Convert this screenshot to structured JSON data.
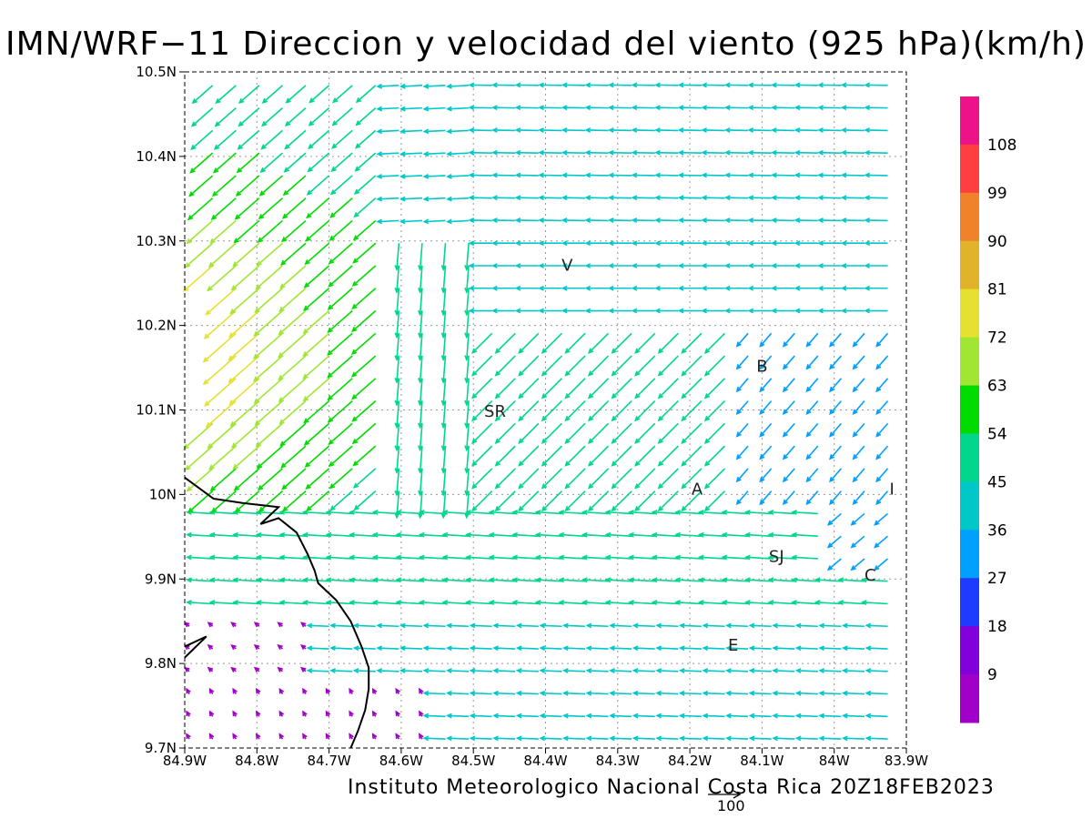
{
  "title": "IMN/WRF−11 Direccion y velocidad del viento (925 hPa)(km/h)",
  "footer": "Instituto Meteorologico Nacional Costa Rica  20Z18FEB2023",
  "reference_vector": {
    "label": "100",
    "speed_kmh": 100
  },
  "axes": {
    "lon_ticks": [
      "84.9W",
      "84.8W",
      "84.7W",
      "84.6W",
      "84.5W",
      "84.4W",
      "84.3W",
      "84.2W",
      "84.1W",
      "84W",
      "83.9W"
    ],
    "lat_ticks": [
      "10.5N",
      "10.4N",
      "10.3N",
      "10.2N",
      "10.1N",
      "10N",
      "9.9N",
      "9.8N",
      "9.7N"
    ]
  },
  "colorbar": {
    "labels": [
      "108",
      "99",
      "90",
      "81",
      "72",
      "63",
      "54",
      "45",
      "36",
      "27",
      "18",
      "9"
    ],
    "colors": [
      "#ee1289",
      "#ff3f3f",
      "#f0832a",
      "#e0b32a",
      "#e6e030",
      "#a0e632",
      "#00dc00",
      "#00d78c",
      "#00c8c8",
      "#00a0ff",
      "#1e3cff",
      "#8200dc",
      "#a000c8"
    ]
  },
  "places": [
    {
      "code": "V",
      "lon": -84.37,
      "lat": 10.265
    },
    {
      "code": "SR",
      "lon": -84.47,
      "lat": 10.092
    },
    {
      "code": "B",
      "lon": -84.1,
      "lat": 10.145
    },
    {
      "code": "A",
      "lon": -84.19,
      "lat": 10.0
    },
    {
      "code": "I",
      "lon": -83.92,
      "lat": 10.0
    },
    {
      "code": "SJ",
      "lon": -84.08,
      "lat": 9.92
    },
    {
      "code": "C",
      "lon": -83.95,
      "lat": 9.898
    },
    {
      "code": "E",
      "lon": -84.14,
      "lat": 9.815
    }
  ]
}
